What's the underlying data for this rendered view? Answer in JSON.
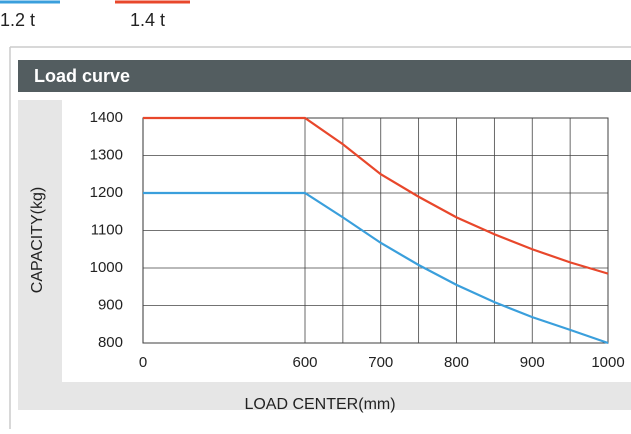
{
  "chart_data": {
    "type": "line",
    "title": "Load curve",
    "xlabel": "LOAD CENTER(mm)",
    "ylabel": "CAPACITY(kg)",
    "x": [
      0,
      600,
      650,
      700,
      750,
      800,
      850,
      900,
      950,
      1000
    ],
    "series": [
      {
        "name": "1.2 t",
        "color": "#3a9fdc",
        "values": [
          1200,
          1200,
          1135,
          1067,
          1008,
          955,
          909,
          869,
          835,
          800
        ]
      },
      {
        "name": "1.4 t",
        "color": "#e8472b",
        "values": [
          1400,
          1400,
          1330,
          1250,
          1190,
          1135,
          1090,
          1050,
          1015,
          985
        ]
      }
    ],
    "xlim": [
      0,
      1000
    ],
    "xticks": [
      0,
      600,
      700,
      800,
      900,
      1000
    ],
    "xgrid": [
      600,
      650,
      700,
      750,
      800,
      850,
      900,
      950,
      1000
    ],
    "ylim": [
      800,
      1400
    ],
    "yticks": [
      800,
      900,
      1000,
      1100,
      1200,
      1300,
      1400
    ],
    "grid": true
  }
}
